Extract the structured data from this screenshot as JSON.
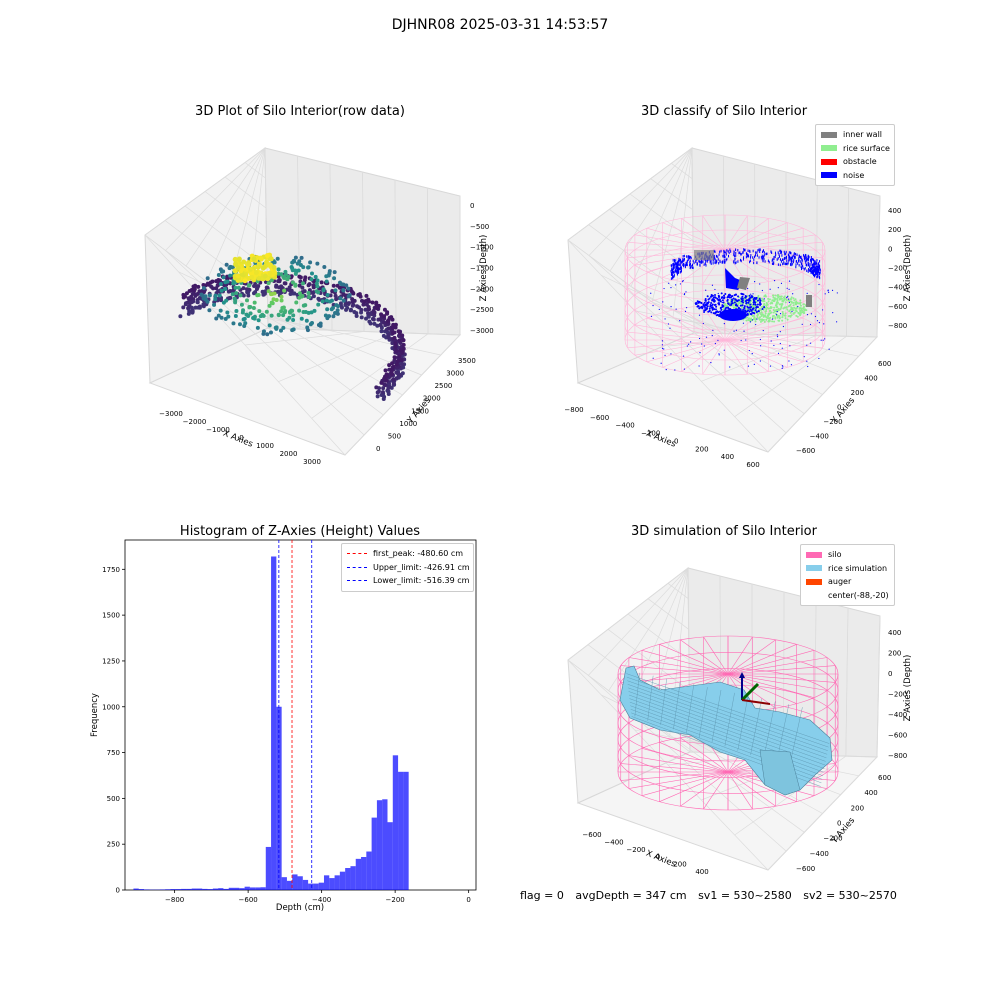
{
  "suptitle": "DJHNR08 2025-03-31 14:53:57",
  "status": {
    "flag": "flag = 0",
    "avg_depth": "avgDepth = 347 cm",
    "sv1": "sv1 = 530~2580",
    "sv2": "sv2 = 530~2570"
  },
  "colors": {
    "inner_wall": "#808080",
    "rice_surface": "#90ee90",
    "obstacle": "#ff0000",
    "noise": "#0000ff",
    "silo": "#ff69b4",
    "rice_sim": "#87ceeb",
    "auger": "#ff4500",
    "hist_bar": "#0000ff"
  },
  "chart_data": [
    {
      "type": "scatter",
      "title": "3D Plot of Silo Interior(row data)",
      "xlabel": "X Axies",
      "ylabel": "Y Axies",
      "zlabel": "Z Axies (Depth)",
      "xticks": [
        "−3000",
        "−2000",
        "−1000",
        "0",
        "1000",
        "2000",
        "3000"
      ],
      "yticks": [
        "0",
        "500",
        "1000",
        "1500",
        "2000",
        "2500",
        "3000",
        "3500"
      ],
      "zticks": [
        "0",
        "−500",
        "−1000",
        "−1500",
        "−2000",
        "−2500",
        "−3000"
      ],
      "colormap": "viridis"
    },
    {
      "type": "scatter",
      "title": "3D classify of Silo Interior",
      "xlabel": "X Axies",
      "ylabel": "Y Axies",
      "zlabel": "Z Axies (Depth)",
      "xticks": [
        "−800",
        "−600",
        "−400",
        "−200",
        "0",
        "200",
        "400",
        "600"
      ],
      "yticks": [
        "600",
        "400",
        "200",
        "0",
        "−200",
        "−400",
        "−600"
      ],
      "zticks": [
        "400",
        "200",
        "0",
        "−200",
        "−400",
        "−600",
        "−800"
      ],
      "legend": [
        "inner wall",
        "rice surface",
        "obstacle",
        "noise"
      ]
    },
    {
      "type": "bar",
      "title": "Histogram of Z-Axies (Height) Values",
      "xlabel": "Depth (cm)",
      "ylabel": "Frequency",
      "xlim": [
        -935,
        20
      ],
      "ylim": [
        0,
        1910
      ],
      "xticks": [
        -800,
        -600,
        -400,
        -200,
        0
      ],
      "xtick_labels": [
        "−800",
        "−600",
        "−400",
        "−200",
        "0"
      ],
      "yticks": [
        0,
        250,
        500,
        750,
        1000,
        1250,
        1500,
        1750
      ],
      "bin_width": 14.4,
      "bin_start": -912,
      "values": [
        8,
        5,
        3,
        2,
        2,
        3,
        4,
        5,
        5,
        6,
        6,
        8,
        8,
        6,
        5,
        8,
        10,
        6,
        12,
        12,
        10,
        18,
        14,
        14,
        15,
        235,
        1820,
        1000,
        70,
        50,
        85,
        75,
        55,
        35,
        35,
        40,
        80,
        65,
        80,
        100,
        120,
        130,
        170,
        180,
        210,
        395,
        490,
        495,
        370,
        735,
        645,
        645
      ],
      "vlines": [
        {
          "x": -480.6,
          "label": "first_peak: -480.60 cm",
          "color": "#ff0000"
        },
        {
          "x": -426.91,
          "label": "Upper_limit: -426.91 cm",
          "color": "#0000ff"
        },
        {
          "x": -516.39,
          "label": "Lower_limit: -516.39 cm",
          "color": "#0000ff"
        }
      ],
      "legend_position": "top-right"
    },
    {
      "type": "surface",
      "title": "3D simulation of Silo Interior",
      "xlabel": "X Axies",
      "ylabel": "Y Axies",
      "zlabel": "Z Axies (Depth)",
      "xticks": [
        "−600",
        "−400",
        "−200",
        "0",
        "200",
        "400"
      ],
      "yticks": [
        "600",
        "400",
        "200",
        "0",
        "−200",
        "−400",
        "−600"
      ],
      "zticks": [
        "400",
        "200",
        "0",
        "−200",
        "−400",
        "−600",
        "−800"
      ],
      "legend": [
        "silo",
        "rice simulation",
        "auger",
        "center(-88,-20)"
      ]
    }
  ]
}
